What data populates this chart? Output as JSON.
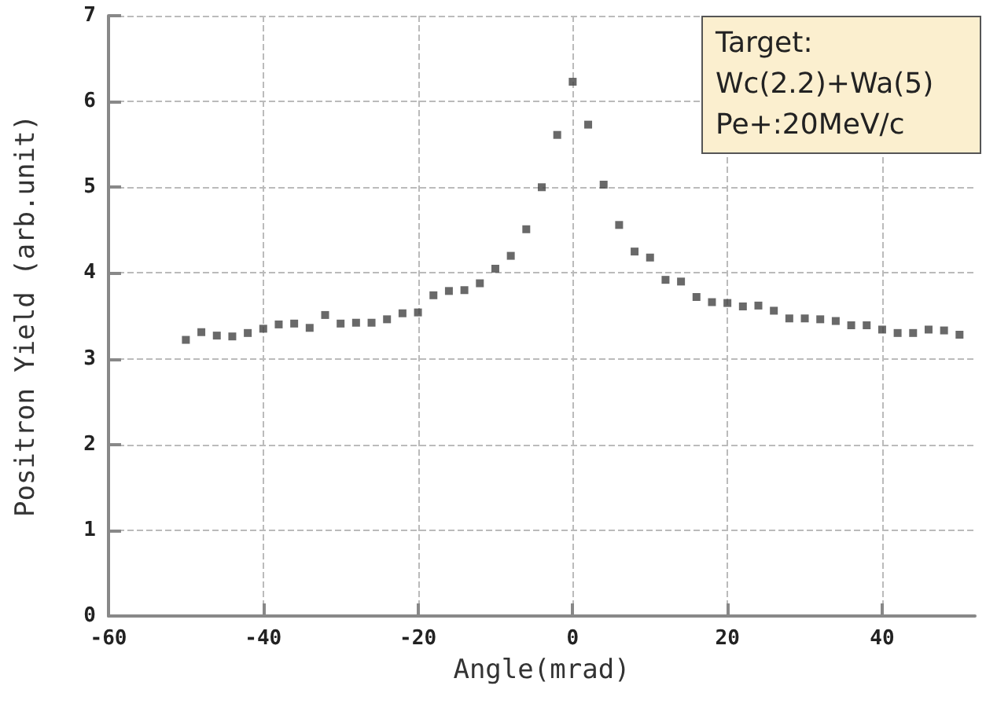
{
  "chart_data": {
    "type": "scatter",
    "xlabel": "Angle(mrad)",
    "ylabel": "Positron Yield (arb.unit)",
    "annotations": [
      "Target:",
      "Wc(2.2)+Wa(5)",
      "Pe+:20MeV/c"
    ],
    "x": [
      -50,
      -48,
      -46,
      -44,
      -42,
      -40,
      -38,
      -36,
      -34,
      -32,
      -30,
      -28,
      -26,
      -24,
      -22,
      -20,
      -18,
      -16,
      -14,
      -12,
      -10,
      -8,
      -6,
      -4,
      -2,
      0,
      2,
      4,
      6,
      8,
      10,
      12,
      14,
      16,
      18,
      20,
      22,
      24,
      26,
      28,
      30,
      32,
      34,
      36,
      38,
      40,
      42,
      44,
      46,
      48,
      50
    ],
    "series": [
      {
        "color": "#444444",
        "values": [
          3.22,
          3.31,
          3.27,
          3.26,
          3.3,
          3.35,
          3.4,
          3.41,
          3.36,
          3.51,
          3.41,
          3.42,
          3.42,
          3.46,
          3.53,
          3.54,
          3.74,
          3.79,
          3.8,
          3.88,
          4.05,
          4.2,
          4.51,
          5.0,
          5.61,
          6.23,
          5.73,
          5.03,
          4.56,
          4.25,
          4.18,
          3.92,
          3.9,
          3.72,
          3.66,
          3.65,
          3.61,
          3.62,
          3.56,
          3.47,
          3.47,
          3.46,
          3.44,
          3.39,
          3.39,
          3.34,
          3.3,
          3.3,
          3.34,
          3.33,
          3.28
        ]
      }
    ],
    "xlim": [
      -60,
      52
    ],
    "xticks": [
      -60,
      -40,
      -20,
      0,
      20,
      40
    ],
    "ylim": [
      0,
      7
    ],
    "yticks": [
      0,
      1,
      2,
      3,
      4,
      5,
      6,
      7
    ],
    "grid": true,
    "marker": "square"
  }
}
